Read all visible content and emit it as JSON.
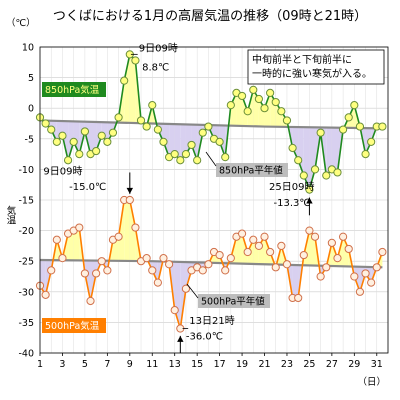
{
  "chart_data": {
    "type": "line",
    "title": "つくばにおける1月の高層気温の推移（09時と21時）",
    "ylabel": "気温",
    "y_unit": "（℃）",
    "x_unit": "（日）",
    "ylim": [
      -40,
      10
    ],
    "y_ticks": [
      "10",
      "5",
      "0",
      "-5",
      "-10",
      "-15",
      "-20",
      "-25",
      "-30",
      "-35",
      "-40"
    ],
    "xlim": [
      1,
      32
    ],
    "x_ticks": [
      "1",
      "3",
      "5",
      "7",
      "9",
      "11",
      "13",
      "15",
      "17",
      "19",
      "21",
      "23",
      "25",
      "27",
      "29",
      "31"
    ],
    "grid": true,
    "series": [
      {
        "name": "850hPa気温",
        "color": "#1f8a1f",
        "marker_fill": "#ffff80",
        "x": [
          1,
          1.5,
          2,
          2.5,
          3,
          3.5,
          4,
          4.5,
          5,
          5.5,
          6,
          6.5,
          7,
          7.5,
          8,
          8.5,
          9,
          9.5,
          10,
          10.5,
          11,
          11.5,
          12,
          12.5,
          13,
          13.5,
          14,
          14.5,
          15,
          15.5,
          16,
          16.5,
          17,
          17.5,
          18,
          18.5,
          19,
          19.5,
          20,
          20.5,
          21,
          21.5,
          22,
          22.5,
          23,
          23.5,
          24,
          24.5,
          25,
          25.5,
          26,
          26.5,
          27,
          27.5,
          28,
          28.5,
          29,
          29.5,
          30,
          30.5,
          31,
          31.5
        ],
        "values": [
          -1.5,
          -2.5,
          -3.5,
          -5.5,
          -4.5,
          -8.5,
          -5.5,
          -7.5,
          -3.8,
          -7.5,
          -7.0,
          -4.5,
          -5.5,
          -4.0,
          -1.5,
          4.5,
          8.8,
          7.8,
          -2.0,
          -3.0,
          0.5,
          -3.5,
          -5.5,
          -8.0,
          -7.5,
          -8.5,
          -7.5,
          -6.0,
          -8.5,
          -4.0,
          -3.0,
          -5.0,
          -5.5,
          -8.0,
          0.5,
          2.5,
          2.0,
          -0.5,
          3.0,
          1.5,
          0.0,
          2.5,
          1.0,
          -0.5,
          -2.0,
          -6.5,
          -8.5,
          -11.0,
          -13.3,
          -10.0,
          -4.0,
          -11.0,
          -10.0,
          -10.5,
          -3.5,
          -1.5,
          0.5,
          -3.0,
          -7.5,
          -5.5,
          -3.0,
          -3.0
        ]
      },
      {
        "name": "850hPa平年値",
        "color": "#888888",
        "x": [
          1,
          11,
          21,
          31.5
        ],
        "values": [
          -2.0,
          -2.5,
          -3.0,
          -3.3
        ]
      },
      {
        "name": "500hPa気温",
        "color": "#ff7f00",
        "marker_fill": "#fff0e0",
        "x": [
          1,
          1.5,
          2,
          2.5,
          3,
          3.5,
          4,
          4.5,
          5,
          5.5,
          6,
          6.5,
          7,
          7.5,
          8,
          8.5,
          9,
          9.5,
          10,
          10.5,
          11,
          11.5,
          12,
          12.5,
          13,
          13.5,
          14,
          14.5,
          15,
          15.5,
          16,
          16.5,
          17,
          17.5,
          18,
          18.5,
          19,
          19.5,
          20,
          20.5,
          21,
          21.5,
          22,
          22.5,
          23,
          23.5,
          24,
          24.5,
          25,
          25.5,
          26,
          26.5,
          27,
          27.5,
          28,
          28.5,
          29,
          29.5,
          30,
          30.5,
          31,
          31.5
        ],
        "values": [
          -29.0,
          -30.5,
          -26.5,
          -21.5,
          -24.5,
          -20.5,
          -20.0,
          -19.5,
          -27.0,
          -31.5,
          -27.0,
          -25.0,
          -26.5,
          -21.5,
          -21.0,
          -15.0,
          -15.0,
          -19.5,
          -25.0,
          -24.5,
          -26.5,
          -28.5,
          -24.5,
          -25.5,
          -33.0,
          -36.0,
          -29.5,
          -26.5,
          -26.0,
          -26.5,
          -25.5,
          -23.5,
          -24.0,
          -26.5,
          -24.5,
          -21.0,
          -20.5,
          -23.5,
          -21.5,
          -22.5,
          -21.0,
          -23.5,
          -26.0,
          -22.5,
          -25.5,
          -31.0,
          -31.0,
          -24.0,
          -20.0,
          -21.0,
          -27.5,
          -26.0,
          -22.0,
          -24.5,
          -21.0,
          -23.0,
          -27.5,
          -30.0,
          -27.0,
          -28.5,
          -26.0,
          -23.5
        ]
      },
      {
        "name": "500hPa平年値",
        "color": "#888888",
        "x": [
          1,
          11,
          21,
          31.5
        ],
        "values": [
          -24.8,
          -25.0,
          -25.5,
          -26.0
        ]
      }
    ],
    "annotations": [
      {
        "text": "9日09時",
        "x": 9,
        "y": 8.8,
        "label_x": 9.8,
        "label_y": 9.3
      },
      {
        "text": "8.8℃",
        "label_x": 10.1,
        "label_y": 6.2
      },
      {
        "text": "9日09時",
        "x": 9,
        "y": -15.0,
        "label_x": 1.3,
        "label_y": -10.8
      },
      {
        "text": "-15.0℃",
        "label_x": 3.6,
        "label_y": -13.4
      },
      {
        "text": "25日09時",
        "x": 25,
        "y": -13.3,
        "label_x": 21.4,
        "label_y": -13.4
      },
      {
        "text": "-13.3℃",
        "label_x": 21.8,
        "label_y": -16.0
      },
      {
        "text": "13日21時",
        "x": 13.5,
        "y": -36.0,
        "label_x": 14.3,
        "label_y": -35.3
      },
      {
        "text": "-36.0℃",
        "label_x": 14.0,
        "label_y": -37.8
      }
    ],
    "note_lines": [
      "中旬前半と下旬前半に",
      "一時的に強い寒気が入る。"
    ],
    "normal_labels": [
      "850hPa平年値",
      "500hPa平年値"
    ],
    "series_boxes": [
      {
        "text": "850hPa気温",
        "bg": "#1f8a1f",
        "fg": "#ffff80"
      },
      {
        "text": "500hPa気温",
        "bg": "#ff7f00",
        "fg": "#ffffff"
      }
    ]
  }
}
